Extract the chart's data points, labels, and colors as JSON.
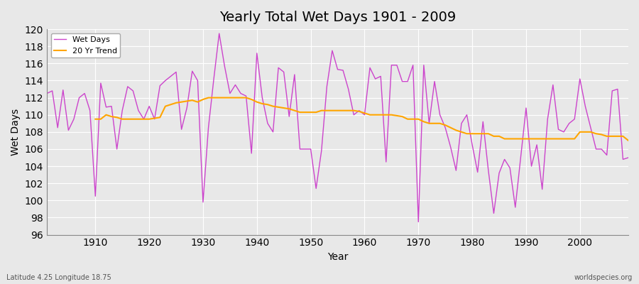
{
  "title": "Yearly Total Wet Days 1901 - 2009",
  "xlabel": "Year",
  "ylabel": "Wet Days",
  "bottom_left_label": "Latitude 4.25 Longitude 18.75",
  "bottom_right_label": "worldspecies.org",
  "legend_labels": [
    "Wet Days",
    "20 Yr Trend"
  ],
  "wet_days_color": "#CC44CC",
  "trend_color": "#FFA500",
  "background_color": "#E8E8E8",
  "plot_bg_color": "#E8E8E8",
  "grid_color": "#FFFFFF",
  "ylim": [
    96,
    120
  ],
  "xlim": [
    1901,
    2009
  ],
  "years": [
    1901,
    1902,
    1903,
    1904,
    1905,
    1906,
    1907,
    1908,
    1909,
    1910,
    1911,
    1912,
    1913,
    1914,
    1915,
    1916,
    1917,
    1918,
    1919,
    1920,
    1921,
    1922,
    1923,
    1924,
    1925,
    1926,
    1927,
    1928,
    1929,
    1930,
    1931,
    1932,
    1933,
    1934,
    1935,
    1936,
    1937,
    1938,
    1939,
    1940,
    1941,
    1942,
    1943,
    1944,
    1945,
    1946,
    1947,
    1948,
    1949,
    1950,
    1951,
    1952,
    1953,
    1954,
    1955,
    1956,
    1957,
    1958,
    1959,
    1960,
    1961,
    1962,
    1963,
    1964,
    1965,
    1966,
    1967,
    1968,
    1969,
    1970,
    1971,
    1972,
    1973,
    1974,
    1975,
    1976,
    1977,
    1978,
    1979,
    1980,
    1981,
    1982,
    1983,
    1984,
    1985,
    1986,
    1987,
    1988,
    1989,
    1990,
    1991,
    1992,
    1993,
    1994,
    1995,
    1996,
    1997,
    1998,
    1999,
    2000,
    2001,
    2002,
    2003,
    2004,
    2005,
    2006,
    2007,
    2008,
    2009
  ],
  "wet_days": [
    112.5,
    112.8,
    108.5,
    112.9,
    108.2,
    109.5,
    112.0,
    112.5,
    110.5,
    100.5,
    113.7,
    110.9,
    111.0,
    106.0,
    110.5,
    113.3,
    112.8,
    110.5,
    109.5,
    111.0,
    109.5,
    113.4,
    114.0,
    114.5,
    115.0,
    108.3,
    110.8,
    115.1,
    114.0,
    99.8,
    108.5,
    114.2,
    119.5,
    115.7,
    112.5,
    113.5,
    112.5,
    112.2,
    105.5,
    117.2,
    112.0,
    109.0,
    108.0,
    115.5,
    115.0,
    109.8,
    114.7,
    106.0,
    106.0,
    106.0,
    101.4,
    105.8,
    113.3,
    117.5,
    115.3,
    115.2,
    113.0,
    110.0,
    110.5,
    110.0,
    115.5,
    114.2,
    114.5,
    104.5,
    115.8,
    115.8,
    113.9,
    113.9,
    115.8,
    97.5,
    115.8,
    109.0,
    113.9,
    110.0,
    108.5,
    106.2,
    103.5,
    109.0,
    110.0,
    106.5,
    103.3,
    109.2,
    103.5,
    98.5,
    103.2,
    104.8,
    103.8,
    99.2,
    105.0,
    110.8,
    104.0,
    106.5,
    101.3,
    109.5,
    113.5,
    108.3,
    108.0,
    109.0,
    109.5,
    114.2,
    111.0,
    108.5,
    106.0,
    106.0,
    105.3,
    112.8,
    113.0,
    104.8,
    105.0
  ],
  "trend_years": [
    1910,
    1911,
    1912,
    1913,
    1914,
    1915,
    1916,
    1917,
    1918,
    1919,
    1920,
    1921,
    1922,
    1923,
    1924,
    1925,
    1926,
    1927,
    1928,
    1929,
    1930,
    1931,
    1932,
    1933,
    1934,
    1935,
    1936,
    1937,
    1938,
    1939,
    1940,
    1941,
    1942,
    1943,
    1944,
    1945,
    1946,
    1947,
    1948,
    1949,
    1950,
    1951,
    1952,
    1953,
    1954,
    1955,
    1956,
    1957,
    1958,
    1959,
    1960,
    1961,
    1962,
    1963,
    1964,
    1965,
    1966,
    1967,
    1968,
    1969,
    1970,
    1971,
    1972,
    1973,
    1974,
    1975,
    1976,
    1977,
    1978,
    1979,
    1980,
    1981,
    1982,
    1983,
    1984,
    1985,
    1986,
    1987,
    1988,
    1989,
    1990,
    1991,
    1992,
    1993,
    1994,
    1995,
    1996,
    1997,
    1998,
    1999,
    2000,
    2001,
    2002,
    2003,
    2004,
    2005,
    2006,
    2007,
    2008,
    2009
  ],
  "trend_values": [
    109.5,
    109.5,
    110.0,
    109.8,
    109.7,
    109.5,
    109.5,
    109.5,
    109.5,
    109.5,
    109.5,
    109.6,
    109.7,
    111.0,
    111.2,
    111.4,
    111.5,
    111.6,
    111.7,
    111.5,
    111.8,
    112.0,
    112.0,
    112.0,
    112.0,
    112.0,
    112.0,
    112.0,
    112.0,
    111.8,
    111.5,
    111.3,
    111.2,
    111.0,
    110.9,
    110.8,
    110.7,
    110.5,
    110.3,
    110.3,
    110.3,
    110.3,
    110.5,
    110.5,
    110.5,
    110.5,
    110.5,
    110.5,
    110.5,
    110.4,
    110.2,
    110.0,
    110.0,
    110.0,
    110.0,
    110.0,
    109.9,
    109.8,
    109.5,
    109.5,
    109.5,
    109.2,
    109.0,
    109.0,
    109.0,
    108.8,
    108.5,
    108.2,
    108.0,
    107.8,
    107.8,
    107.8,
    107.8,
    107.8,
    107.5,
    107.5,
    107.2,
    107.2,
    107.2,
    107.2,
    107.2,
    107.2,
    107.2,
    107.2,
    107.2,
    107.2,
    107.2,
    107.2,
    107.2,
    107.2,
    108.0,
    108.0,
    108.0,
    107.8,
    107.7,
    107.5,
    107.5,
    107.5,
    107.5,
    107.0
  ]
}
